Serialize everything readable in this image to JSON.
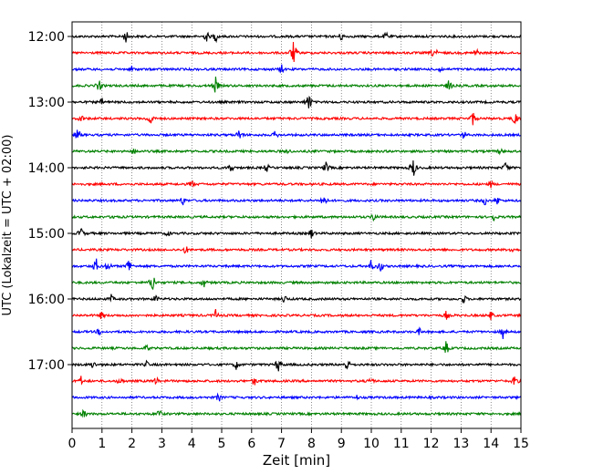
{
  "chart_data": {
    "type": "line",
    "title": "",
    "xlabel": "Zeit  [min]",
    "ylabel": "UTC (Lokalzeit = UTC + 02:00)",
    "xlim": [
      0,
      15
    ],
    "x_ticks": [
      0,
      1,
      2,
      3,
      4,
      5,
      6,
      7,
      8,
      9,
      10,
      11,
      12,
      13,
      14,
      15
    ],
    "y_tick_labels": [
      "12:00",
      "13:00",
      "14:00",
      "15:00",
      "16:00",
      "17:00"
    ],
    "grid_x": "dotted vertical at each minute",
    "trace_interval_min": 15,
    "traces_start": "12:00",
    "trace_colors": [
      "#000000",
      "#ff0000",
      "#0000ff",
      "#008000"
    ],
    "traces": [
      {
        "start": "12:00",
        "color": "#000000",
        "events": [
          [
            1.8,
            8
          ],
          [
            4.5,
            7
          ],
          [
            4.8,
            7
          ],
          [
            9.0,
            6
          ],
          [
            10.5,
            6
          ]
        ]
      },
      {
        "start": "12:15",
        "color": "#ff0000",
        "events": [
          [
            7.4,
            14
          ],
          [
            12.1,
            9
          ],
          [
            13.5,
            7
          ]
        ]
      },
      {
        "start": "12:30",
        "color": "#0000ff",
        "events": [
          [
            2.0,
            5
          ],
          [
            7.0,
            6
          ],
          [
            12.3,
            5
          ]
        ]
      },
      {
        "start": "12:45",
        "color": "#008000",
        "events": [
          [
            0.9,
            8
          ],
          [
            4.8,
            10
          ],
          [
            12.6,
            8
          ]
        ]
      },
      {
        "start": "13:00",
        "color": "#000000",
        "events": [
          [
            7.9,
            12
          ],
          [
            1.0,
            5
          ]
        ]
      },
      {
        "start": "13:15",
        "color": "#ff0000",
        "events": [
          [
            0.3,
            6
          ],
          [
            2.6,
            10
          ],
          [
            13.4,
            9
          ],
          [
            14.8,
            9
          ]
        ]
      },
      {
        "start": "13:30",
        "color": "#0000ff",
        "events": [
          [
            0.2,
            8
          ],
          [
            5.6,
            8
          ],
          [
            6.8,
            6
          ],
          [
            13.1,
            6
          ]
        ]
      },
      {
        "start": "13:45",
        "color": "#008000",
        "events": [
          [
            2.1,
            6
          ],
          [
            7.2,
            5
          ],
          [
            14.3,
            5
          ]
        ]
      },
      {
        "start": "14:00",
        "color": "#000000",
        "events": [
          [
            5.3,
            7
          ],
          [
            6.5,
            6
          ],
          [
            8.5,
            8
          ],
          [
            11.4,
            12
          ],
          [
            14.5,
            8
          ]
        ]
      },
      {
        "start": "14:15",
        "color": "#ff0000",
        "events": [
          [
            4.0,
            6
          ],
          [
            14.0,
            5
          ]
        ]
      },
      {
        "start": "14:30",
        "color": "#0000ff",
        "events": [
          [
            3.7,
            6
          ],
          [
            8.4,
            10
          ],
          [
            14.2,
            7
          ],
          [
            13.8,
            6
          ]
        ]
      },
      {
        "start": "14:45",
        "color": "#008000",
        "events": [
          [
            1.4,
            5
          ],
          [
            10.1,
            7
          ],
          [
            14.1,
            6
          ]
        ]
      },
      {
        "start": "15:00",
        "color": "#000000",
        "events": [
          [
            0.3,
            8
          ],
          [
            8.0,
            7
          ],
          [
            3.2,
            5
          ]
        ]
      },
      {
        "start": "15:15",
        "color": "#ff0000",
        "events": [
          [
            3.8,
            6
          ],
          [
            14.7,
            5
          ]
        ]
      },
      {
        "start": "15:30",
        "color": "#0000ff",
        "events": [
          [
            0.8,
            10
          ],
          [
            1.9,
            10
          ],
          [
            1.2,
            8
          ],
          [
            10.0,
            8
          ],
          [
            10.3,
            8
          ]
        ]
      },
      {
        "start": "15:45",
        "color": "#008000",
        "events": [
          [
            2.7,
            12
          ],
          [
            4.4,
            7
          ]
        ]
      },
      {
        "start": "16:00",
        "color": "#000000",
        "events": [
          [
            1.3,
            6
          ],
          [
            2.8,
            6
          ],
          [
            7.1,
            6
          ],
          [
            13.1,
            6
          ]
        ]
      },
      {
        "start": "16:15",
        "color": "#ff0000",
        "events": [
          [
            1.0,
            6
          ],
          [
            4.8,
            7
          ],
          [
            12.5,
            6
          ],
          [
            14.0,
            6
          ]
        ]
      },
      {
        "start": "16:30",
        "color": "#0000ff",
        "events": [
          [
            0.9,
            5
          ],
          [
            11.6,
            5
          ],
          [
            14.4,
            8
          ]
        ]
      },
      {
        "start": "16:45",
        "color": "#008000",
        "events": [
          [
            2.5,
            5
          ],
          [
            12.5,
            9
          ]
        ]
      },
      {
        "start": "17:00",
        "color": "#000000",
        "events": [
          [
            0.7,
            6
          ],
          [
            5.5,
            7
          ],
          [
            6.9,
            10
          ],
          [
            9.2,
            9
          ],
          [
            2.5,
            5
          ]
        ]
      },
      {
        "start": "17:15",
        "color": "#ff0000",
        "events": [
          [
            0.3,
            6
          ],
          [
            1.6,
            6
          ],
          [
            2.8,
            6
          ],
          [
            6.1,
            6
          ],
          [
            10.0,
            6
          ],
          [
            14.8,
            8
          ]
        ]
      },
      {
        "start": "17:30",
        "color": "#0000ff",
        "events": [
          [
            4.9,
            6
          ],
          [
            9.5,
            4
          ]
        ]
      },
      {
        "start": "17:45",
        "color": "#008000",
        "events": [
          [
            0.4,
            6
          ],
          [
            2.9,
            7
          ]
        ]
      }
    ]
  }
}
